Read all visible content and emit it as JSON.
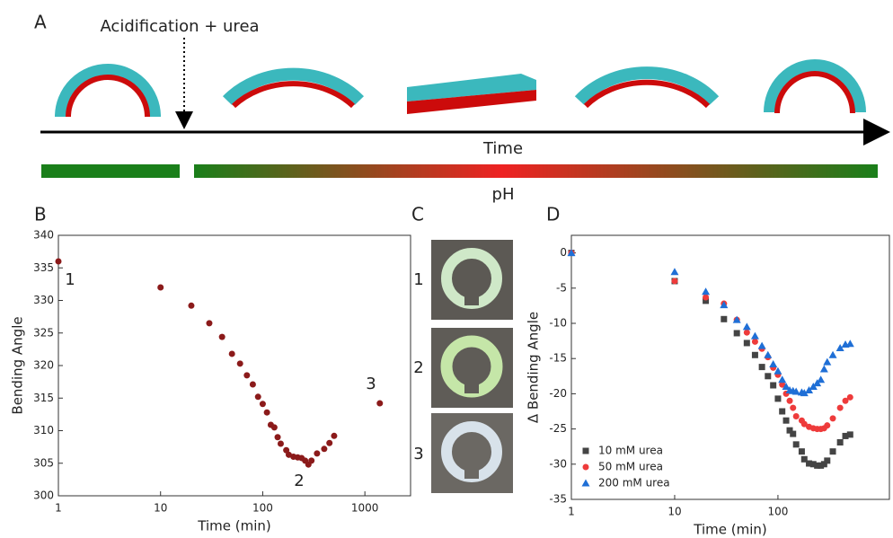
{
  "panel_a": {
    "label": "A",
    "event": "Acidification + urea",
    "axis_label": "Time",
    "bar_label": "pH"
  },
  "panel_labels": {
    "b": "B",
    "c": "C",
    "d": "D"
  },
  "photos": {
    "labels": [
      "1",
      "2",
      "3"
    ]
  },
  "chart_data": [
    {
      "type": "scatter",
      "xscale": "log",
      "x_label": "Time (min)",
      "y_label": "Bending Angle",
      "xlim": [
        1,
        2800
      ],
      "xticks": [
        1,
        10,
        100,
        1000
      ],
      "ylim": [
        300,
        340
      ],
      "yticks": [
        300,
        305,
        310,
        315,
        320,
        325,
        330,
        335,
        340
      ],
      "grid": false,
      "color": "#8b1a1a",
      "annotations": [
        "1",
        "2",
        "3"
      ],
      "x": [
        1,
        10,
        20,
        30,
        40,
        50,
        60,
        70,
        80,
        90,
        100,
        110,
        120,
        130,
        140,
        150,
        170,
        180,
        200,
        220,
        240,
        260,
        280,
        300,
        340,
        400,
        450,
        500,
        1400
      ],
      "values": [
        336,
        332,
        329.2,
        326.5,
        324.4,
        321.8,
        320.3,
        318.5,
        317.1,
        315.2,
        314.1,
        312.8,
        310.9,
        310.5,
        309,
        308,
        307,
        306.3,
        306,
        305.9,
        305.8,
        305.4,
        304.8,
        305.4,
        306.5,
        307.2,
        308.1,
        309.2,
        314.2
      ]
    },
    {
      "type": "scatter",
      "xscale": "log",
      "x_label": "Time (min)",
      "y_label": "Δ Bending Angle",
      "xlim": [
        1,
        1200
      ],
      "xticks": [
        1,
        10,
        100
      ],
      "ylim": [
        -35,
        2.5
      ],
      "yticks": [
        -35,
        -30,
        -25,
        -20,
        -15,
        -10,
        -5,
        0
      ],
      "grid": false,
      "legend": "lower left",
      "x": [
        1,
        10,
        20,
        30,
        40,
        50,
        60,
        70,
        80,
        90,
        100,
        110,
        120,
        130,
        140,
        150,
        170,
        180,
        200,
        220,
        240,
        260,
        280,
        300,
        340,
        400,
        450,
        500
      ],
      "series": [
        {
          "name": "10 mM urea",
          "color": "#444444",
          "marker": "square",
          "values": [
            0,
            -4,
            -6.8,
            -9.4,
            -11.4,
            -12.8,
            -14.5,
            -16.2,
            -17.5,
            -18.8,
            -20.7,
            -22.5,
            -23.8,
            -25.2,
            -25.7,
            -27.2,
            -28.2,
            -29.3,
            -29.9,
            -30,
            -30.2,
            -30.2,
            -30,
            -29.5,
            -28.2,
            -26.9,
            -26,
            -25.8
          ]
        },
        {
          "name": "50 mM urea",
          "color": "#ee3b3b",
          "marker": "circle",
          "values": [
            0,
            -4,
            -6.3,
            -7.2,
            -9.5,
            -11.3,
            -12.6,
            -13.6,
            -14.8,
            -16.3,
            -17.3,
            -18.7,
            -20,
            -21,
            -22,
            -23.2,
            -23.8,
            -24.3,
            -24.7,
            -24.9,
            -25,
            -25,
            -24.9,
            -24.5,
            -23.5,
            -22,
            -21,
            -20.5
          ]
        },
        {
          "name": "200 mM urea",
          "color": "#1f6fd6",
          "marker": "triangle",
          "values": [
            0,
            -2.7,
            -5.5,
            -7.4,
            -9.5,
            -10.5,
            -11.8,
            -13.2,
            -14.5,
            -15.8,
            -16.8,
            -18,
            -19,
            -19.5,
            -19.6,
            -19.7,
            -19.8,
            -19.9,
            -19.5,
            -19,
            -18.5,
            -18,
            -16.5,
            -15.5,
            -14.5,
            -13.5,
            -13,
            -12.9
          ]
        }
      ]
    }
  ]
}
